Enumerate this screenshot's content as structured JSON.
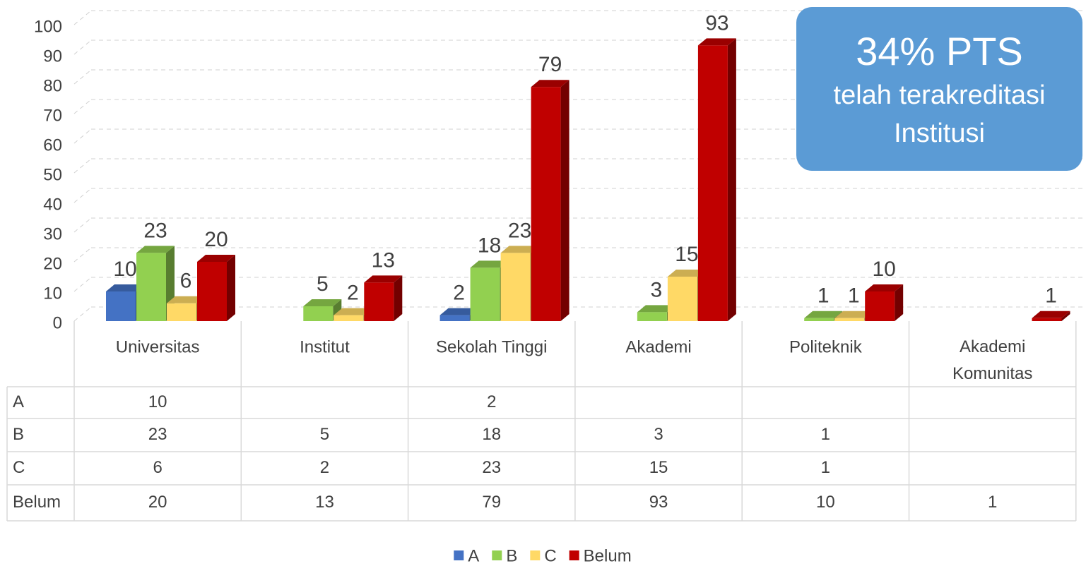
{
  "chart_data": {
    "type": "bar3d",
    "categories": [
      "Universitas",
      "Institut",
      "Sekolah Tinggi",
      "Akademi",
      "Politeknik",
      "Akademi Komunitas"
    ],
    "series": [
      {
        "name": "A",
        "color": "#4472c4",
        "values": [
          10,
          null,
          2,
          null,
          null,
          null
        ]
      },
      {
        "name": "B",
        "color": "#92d050",
        "values": [
          23,
          5,
          18,
          3,
          1,
          null
        ]
      },
      {
        "name": "C",
        "color": "#ffd966",
        "values": [
          6,
          2,
          23,
          15,
          1,
          null
        ]
      },
      {
        "name": "Belum",
        "color": "#c00000",
        "values": [
          20,
          13,
          79,
          93,
          10,
          1
        ]
      }
    ],
    "ylim": [
      0,
      100
    ],
    "yticks": [
      0,
      10,
      20,
      30,
      40,
      50,
      60,
      70,
      80,
      90,
      100
    ],
    "grid": true,
    "data_table": true,
    "legend": "bottom",
    "annotation": {
      "title": "34% PTS",
      "text": "telah terakreditasi Institusi",
      "color": "#5b9bd5"
    }
  }
}
